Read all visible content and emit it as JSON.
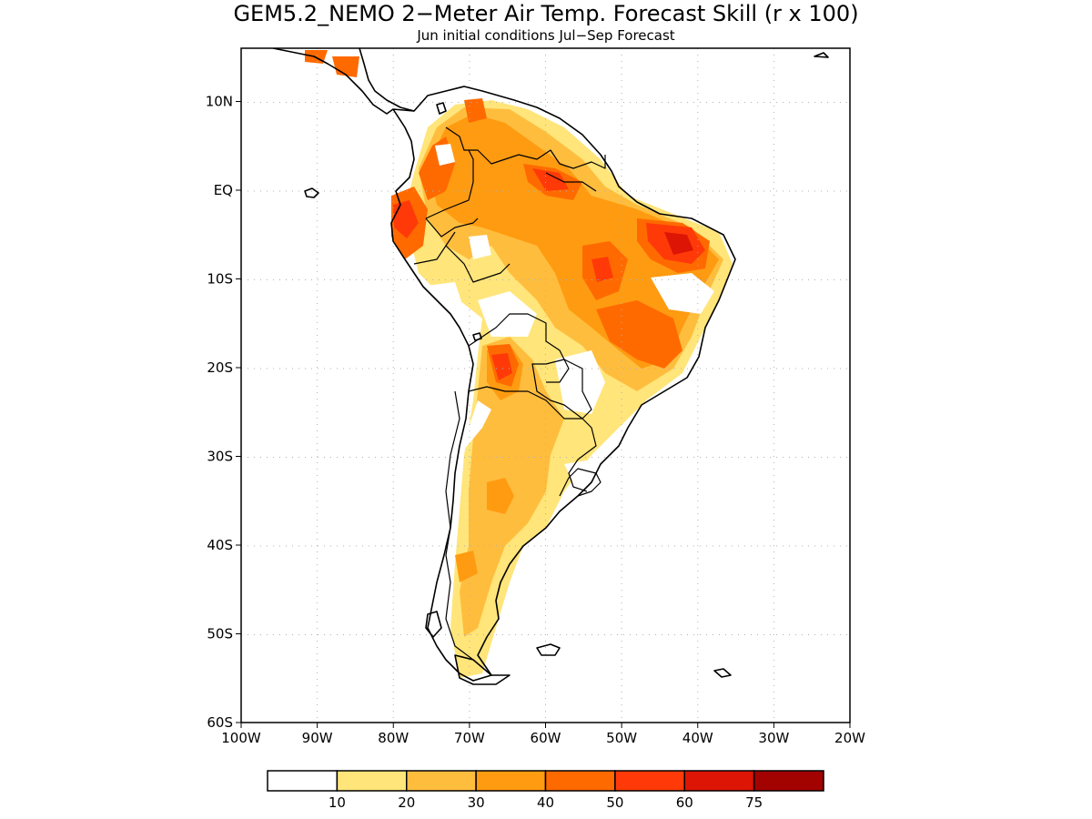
{
  "title": "GEM5.2_NEMO 2−Meter Air Temp. Forecast Skill (r x 100)",
  "subtitle": "Jun initial conditions  Jul−Sep Forecast",
  "map": {
    "lon_range": [
      -100,
      -20
    ],
    "lat_range": [
      -60,
      16
    ],
    "lon_ticks": [
      "100W",
      "90W",
      "80W",
      "70W",
      "60W",
      "50W",
      "40W",
      "30W",
      "20W"
    ],
    "lat_ticks": [
      "10N",
      "EQ",
      "10S",
      "20S",
      "30S",
      "40S",
      "50S",
      "60S"
    ]
  },
  "legend": {
    "labels": [
      "10",
      "20",
      "30",
      "40",
      "50",
      "60",
      "75"
    ],
    "colors": [
      "#ffffff",
      "#ffe57a",
      "#ffbd3e",
      "#ff9b10",
      "#ff6a00",
      "#ff3a08",
      "#dd1505",
      "#a30300"
    ]
  }
}
